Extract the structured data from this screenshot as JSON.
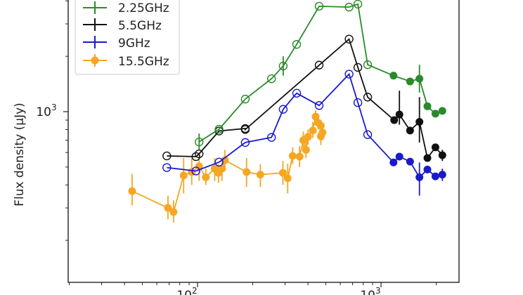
{
  "chart_data": {
    "type": "line",
    "title": "",
    "xlabel": "",
    "ylabel": "Flux density (μJy)",
    "xscale": "log",
    "yscale": "log",
    "xlim": [
      42,
      2760
    ],
    "ylim": [
      217,
      4800
    ],
    "x_ticks": [
      {
        "value": 100,
        "label": "10",
        "exp": "2"
      },
      {
        "value": 1000,
        "label": "10",
        "exp": "3"
      }
    ],
    "y_ticks": [
      {
        "value": 1000,
        "label": "10",
        "exp": "3"
      }
    ],
    "grid": false,
    "legend_position": "upper left",
    "series": [
      {
        "name": "2.25GHz",
        "color": "#2a8a2a",
        "points": [
          {
            "x": 102,
            "y": 685,
            "err": [
              620,
              760
            ],
            "open": true
          },
          {
            "x": 131,
            "y": 803,
            "open": true
          },
          {
            "x": 182,
            "y": 1170,
            "open": true
          },
          {
            "x": 253,
            "y": 1510,
            "open": true
          },
          {
            "x": 293,
            "y": 1770,
            "err": [
              1570,
              2000
            ],
            "open": true
          },
          {
            "x": 347,
            "y": 2320,
            "open": true
          },
          {
            "x": 460,
            "y": 3740,
            "open": true
          },
          {
            "x": 670,
            "y": 3700,
            "open": true
          },
          {
            "x": 748,
            "y": 3840,
            "open": true
          },
          {
            "x": 846,
            "y": 1800,
            "open": true
          },
          {
            "x": 1170,
            "y": 1570,
            "open": false
          },
          {
            "x": 1440,
            "y": 1460,
            "open": false
          },
          {
            "x": 1620,
            "y": 1510,
            "err": [
              1270,
              1800
            ],
            "open": false
          },
          {
            "x": 1790,
            "y": 1070,
            "open": false
          },
          {
            "x": 1980,
            "y": 975,
            "open": false
          },
          {
            "x": 2160,
            "y": 1010,
            "open": false
          }
        ]
      },
      {
        "name": "5.5GHz",
        "color": "#111111",
        "points": [
          {
            "x": 68,
            "y": 575,
            "open": true
          },
          {
            "x": 98,
            "y": 570,
            "open": true
          },
          {
            "x": 102,
            "y": 590,
            "open": true
          },
          {
            "x": 131,
            "y": 785,
            "open": true
          },
          {
            "x": 182,
            "y": 810,
            "open": true
          },
          {
            "x": 182,
            "y": 800,
            "open": true
          },
          {
            "x": 460,
            "y": 1790,
            "open": true
          },
          {
            "x": 670,
            "y": 2480,
            "open": true
          },
          {
            "x": 748,
            "y": 1740,
            "open": true
          },
          {
            "x": 846,
            "y": 1200,
            "open": true
          },
          {
            "x": 1180,
            "y": 900,
            "open": false
          },
          {
            "x": 1260,
            "y": 965,
            "err": [
              850,
              1300
            ],
            "open": false
          },
          {
            "x": 1440,
            "y": 790,
            "open": false
          },
          {
            "x": 1620,
            "y": 880,
            "err": [
              680,
              1200
            ],
            "open": false
          },
          {
            "x": 1790,
            "y": 560,
            "open": false
          },
          {
            "x": 1980,
            "y": 640,
            "open": false
          },
          {
            "x": 2160,
            "y": 580,
            "err": [
              540,
              620
            ],
            "open": false
          }
        ]
      },
      {
        "name": "9GHz",
        "color": "#1a1acc",
        "points": [
          {
            "x": 68,
            "y": 497,
            "open": true
          },
          {
            "x": 98,
            "y": 476,
            "open": true
          },
          {
            "x": 131,
            "y": 532,
            "open": true
          },
          {
            "x": 182,
            "y": 680,
            "open": true
          },
          {
            "x": 253,
            "y": 725,
            "open": true
          },
          {
            "x": 293,
            "y": 1030,
            "open": true
          },
          {
            "x": 347,
            "y": 1260,
            "open": true
          },
          {
            "x": 460,
            "y": 1080,
            "open": true
          },
          {
            "x": 670,
            "y": 1600,
            "open": true
          },
          {
            "x": 748,
            "y": 1120,
            "open": true
          },
          {
            "x": 846,
            "y": 750,
            "open": true
          },
          {
            "x": 1170,
            "y": 530,
            "open": false
          },
          {
            "x": 1260,
            "y": 570,
            "open": false
          },
          {
            "x": 1440,
            "y": 535,
            "open": false
          },
          {
            "x": 1620,
            "y": 440,
            "err": [
              350,
              530
            ],
            "open": false
          },
          {
            "x": 1790,
            "y": 485,
            "open": false
          },
          {
            "x": 1980,
            "y": 445,
            "open": false
          },
          {
            "x": 2160,
            "y": 455,
            "err": [
              420,
              490
            ],
            "open": false
          }
        ]
      },
      {
        "name": "15.5GHz",
        "color": "#f5a623",
        "points": [
          {
            "x": 44,
            "y": 370,
            "err": [
              310,
              460
            ]
          },
          {
            "x": 69,
            "y": 300,
            "err": [
              260,
              350
            ]
          },
          {
            "x": 74,
            "y": 285,
            "err": [
              250,
              330
            ]
          },
          {
            "x": 84,
            "y": 450,
            "err": [
              360,
              560
            ]
          },
          {
            "x": 93,
            "y": 470,
            "err": [
              400,
              560
            ]
          },
          {
            "x": 102,
            "y": 505,
            "err": [
              420,
              600
            ]
          },
          {
            "x": 111,
            "y": 440,
            "err": [
              400,
              490
            ]
          },
          {
            "x": 124,
            "y": 490,
            "err": [
              420,
              560
            ]
          },
          {
            "x": 130,
            "y": 465,
            "err": [
              410,
              520
            ]
          },
          {
            "x": 136,
            "y": 490,
            "err": [
              420,
              560
            ]
          },
          {
            "x": 141,
            "y": 545,
            "err": [
              480,
              620
            ]
          },
          {
            "x": 185,
            "y": 470,
            "err": [
              390,
              560
            ]
          },
          {
            "x": 220,
            "y": 455,
            "err": [
              390,
              520
            ]
          },
          {
            "x": 292,
            "y": 465,
            "err": [
              400,
              540
            ]
          },
          {
            "x": 310,
            "y": 435,
            "err": [
              360,
              520
            ]
          },
          {
            "x": 330,
            "y": 575,
            "err": [
              520,
              640
            ]
          },
          {
            "x": 360,
            "y": 570,
            "err": [
              500,
              650
            ]
          },
          {
            "x": 377,
            "y": 700,
            "err": [
              620,
              780
            ]
          },
          {
            "x": 390,
            "y": 620,
            "err": [
              560,
              700
            ]
          },
          {
            "x": 400,
            "y": 730,
            "err": [
              660,
              800
            ]
          },
          {
            "x": 425,
            "y": 790,
            "err": [
              720,
              880
            ]
          },
          {
            "x": 440,
            "y": 940,
            "err": [
              860,
              1020
            ]
          },
          {
            "x": 455,
            "y": 870,
            "err": [
              800,
              940
            ]
          },
          {
            "x": 470,
            "y": 840,
            "err": [
              780,
              900
            ]
          },
          {
            "x": 480,
            "y": 770,
            "err": [
              700,
              850
            ]
          },
          {
            "x": 470,
            "y": 735,
            "err": [
              660,
              820
            ]
          }
        ]
      }
    ]
  },
  "legend": {
    "entries": [
      "2.25GHz",
      "5.5GHz",
      "9GHz",
      "15.5GHz"
    ]
  },
  "axes": {
    "ylabel": "Flux density (μJy)",
    "xtick_labels": [
      "10",
      "10"
    ],
    "xtick_exps": [
      "2",
      "3"
    ],
    "ytick_label": "10",
    "ytick_exp": "3"
  }
}
